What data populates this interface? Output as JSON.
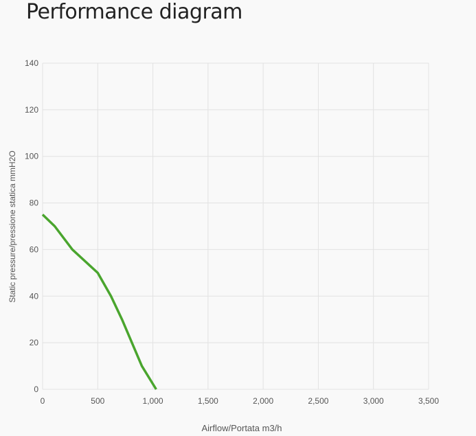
{
  "chart_data": {
    "type": "line",
    "title": "Performance diagram",
    "x_label": "Airflow/Portata m3/h",
    "y_label": "Static pressure/pressione statica mmH2O",
    "x": [
      0,
      110,
      270,
      500,
      620,
      720,
      900,
      1030
    ],
    "values": [
      75,
      70,
      60,
      50,
      40,
      30,
      10,
      0
    ],
    "color": "#4aa52e",
    "xlim": [
      0,
      3500
    ],
    "xticks": [
      0,
      500,
      {
        "value": 1000,
        "label": "1,000"
      },
      {
        "value": 1500,
        "label": "1,500"
      },
      {
        "value": 2000,
        "label": "2,000"
      },
      {
        "value": 2500,
        "label": "2,500"
      },
      {
        "value": 3000,
        "label": "3,000"
      },
      {
        "value": 3500,
        "label": "3,500"
      }
    ],
    "ylim": [
      0,
      140
    ],
    "yticks": [
      0,
      20,
      40,
      60,
      80,
      100,
      120,
      140
    ],
    "grid": true
  }
}
